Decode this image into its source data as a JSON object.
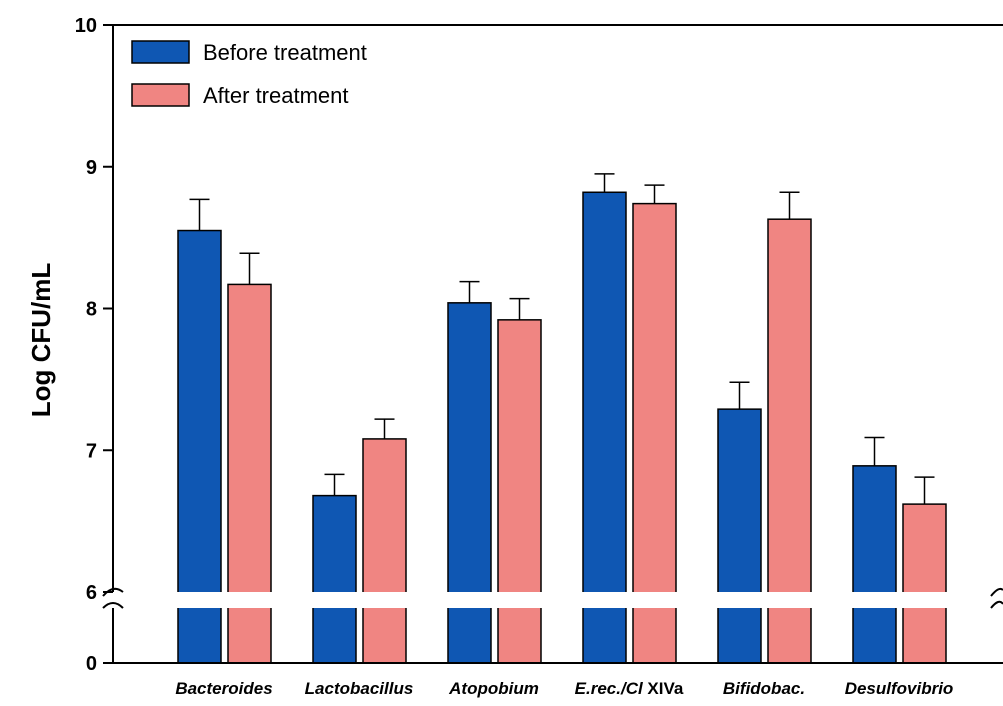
{
  "chart_data": {
    "type": "bar",
    "title": "",
    "xlabel": "",
    "ylabel": "Log CFU/mL",
    "ylim": [
      6,
      10
    ],
    "axis_break": {
      "below": 6,
      "shown_base": 0
    },
    "y_ticks": [
      "0",
      "6",
      "7",
      "8",
      "9",
      "10"
    ],
    "categories": [
      "Bacteroides",
      "Lactobacillus",
      "Atopobium",
      "E.rec./Cl XIVa",
      "Bifidobac.",
      "Desulfovibrio"
    ],
    "series": [
      {
        "name": "Before treatment",
        "color": "#0f57b3",
        "values": [
          8.55,
          6.68,
          8.04,
          8.82,
          7.29,
          6.89
        ],
        "errors": [
          0.22,
          0.15,
          0.15,
          0.13,
          0.19,
          0.2
        ]
      },
      {
        "name": "After treatment",
        "color": "#f08582",
        "values": [
          8.17,
          7.08,
          7.92,
          8.74,
          8.63,
          6.62
        ],
        "errors": [
          0.22,
          0.14,
          0.15,
          0.13,
          0.19,
          0.19
        ]
      }
    ],
    "legend_position": "top-left",
    "grid": false
  }
}
